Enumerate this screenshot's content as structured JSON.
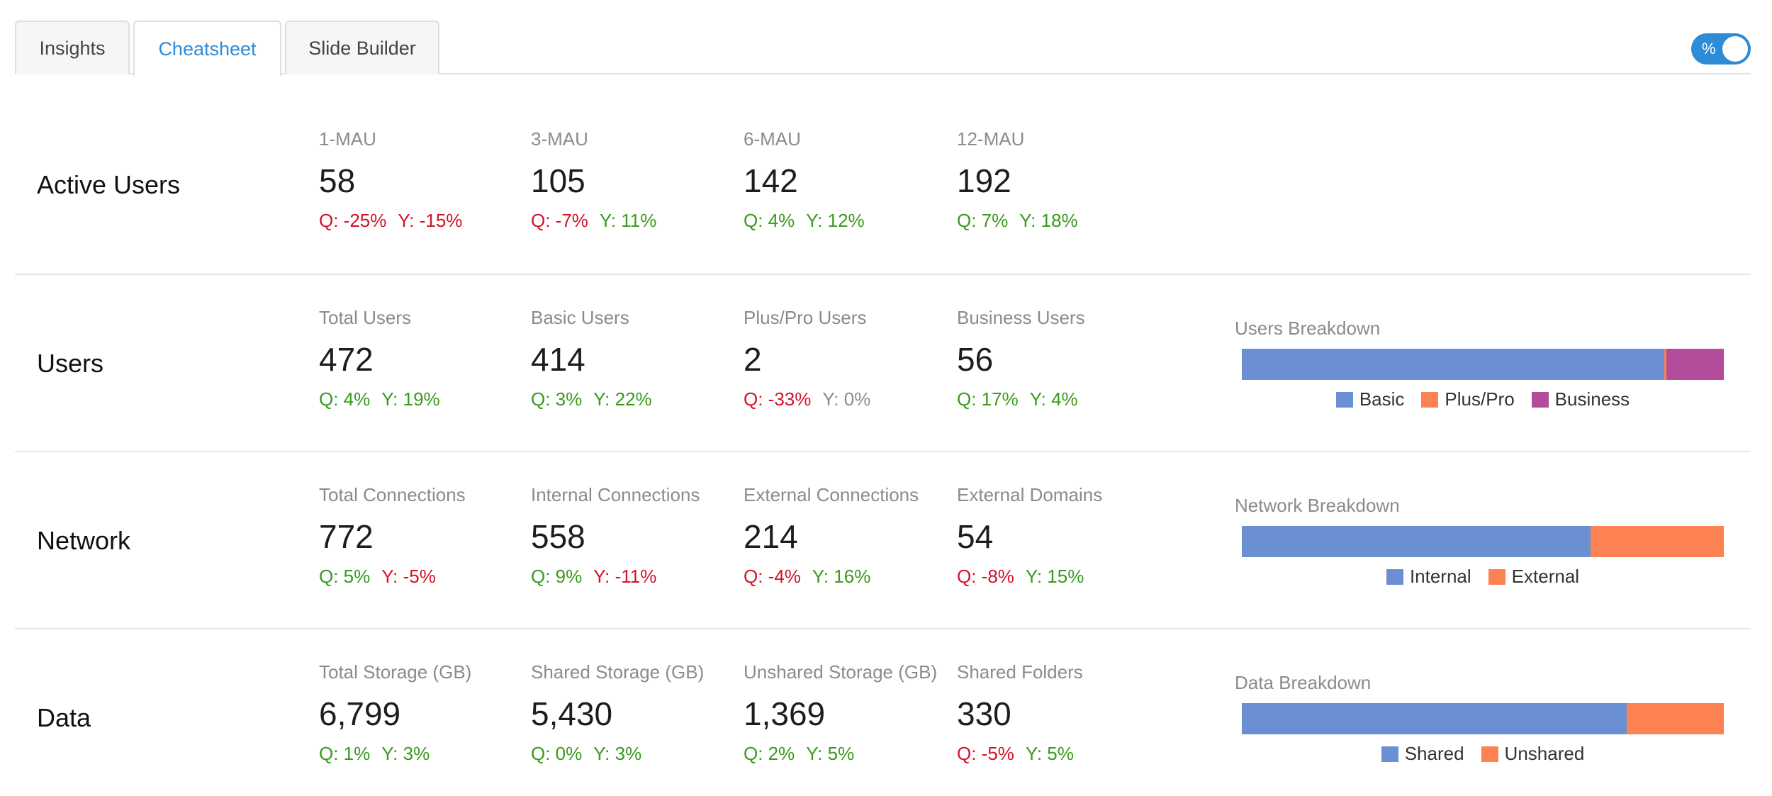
{
  "tabs": [
    {
      "label": "Insights",
      "active": false
    },
    {
      "label": "Cheatsheet",
      "active": true
    },
    {
      "label": "Slide Builder",
      "active": false
    }
  ],
  "toggle": {
    "label": "%",
    "on": true
  },
  "colors": {
    "accent": "#2e8bd6",
    "positive": "#3a9a1c",
    "negative": "#d1132a",
    "blue": "#6a8fd3",
    "orange": "#fc8153",
    "purple": "#b34c9b"
  },
  "sections": {
    "active_users": {
      "title": "Active Users",
      "metrics": [
        {
          "label": "1-MAU",
          "value": "58",
          "q": "Q: -25%",
          "y": "Y: -15%"
        },
        {
          "label": "3-MAU",
          "value": "105",
          "q": "Q: -7%",
          "y": "Y: 11%"
        },
        {
          "label": "6-MAU",
          "value": "142",
          "q": "Q: 4%",
          "y": "Y: 12%"
        },
        {
          "label": "12-MAU",
          "value": "192",
          "q": "Q: 7%",
          "y": "Y: 18%"
        }
      ]
    },
    "users": {
      "title": "Users",
      "metrics": [
        {
          "label": "Total Users",
          "value": "472",
          "q": "Q: 4%",
          "y": "Y: 19%"
        },
        {
          "label": "Basic Users",
          "value": "414",
          "q": "Q: 3%",
          "y": "Y: 22%"
        },
        {
          "label": "Plus/Pro Users",
          "value": "2",
          "q": "Q: -33%",
          "y": "Y: 0%"
        },
        {
          "label": "Business Users",
          "value": "56",
          "q": "Q: 17%",
          "y": "Y: 4%"
        }
      ],
      "breakdown": {
        "title": "Users Breakdown",
        "segments": [
          {
            "name": "Basic",
            "value": 414,
            "color": "#6a8fd3"
          },
          {
            "name": "Plus/Pro",
            "value": 2,
            "color": "#fc8153"
          },
          {
            "name": "Business",
            "value": 56,
            "color": "#b34c9b"
          }
        ]
      }
    },
    "network": {
      "title": "Network",
      "metrics": [
        {
          "label": "Total Connections",
          "value": "772",
          "q": "Q: 5%",
          "y": "Y: -5%"
        },
        {
          "label": "Internal Connections",
          "value": "558",
          "q": "Q: 9%",
          "y": "Y: -11%"
        },
        {
          "label": "External Connections",
          "value": "214",
          "q": "Q: -4%",
          "y": "Y: 16%"
        },
        {
          "label": "External Domains",
          "value": "54",
          "q": "Q: -8%",
          "y": "Y: 15%"
        }
      ],
      "breakdown": {
        "title": "Network Breakdown",
        "segments": [
          {
            "name": "Internal",
            "value": 558,
            "color": "#6a8fd3"
          },
          {
            "name": "External",
            "value": 214,
            "color": "#fc8153"
          }
        ]
      }
    },
    "data": {
      "title": "Data",
      "metrics": [
        {
          "label": "Total Storage (GB)",
          "value": "6,799",
          "q": "Q: 1%",
          "y": "Y: 3%"
        },
        {
          "label": "Shared Storage (GB)",
          "value": "5,430",
          "q": "Q: 0%",
          "y": "Y: 3%"
        },
        {
          "label": "Unshared Storage (GB)",
          "value": "1,369",
          "q": "Q: 2%",
          "y": "Y: 5%"
        },
        {
          "label": "Shared Folders",
          "value": "330",
          "q": "Q: -5%",
          "y": "Y: 5%"
        }
      ],
      "breakdown": {
        "title": "Data Breakdown",
        "segments": [
          {
            "name": "Shared",
            "value": 5430,
            "color": "#6a8fd3"
          },
          {
            "name": "Unshared",
            "value": 1369,
            "color": "#fc8153"
          }
        ]
      }
    }
  }
}
